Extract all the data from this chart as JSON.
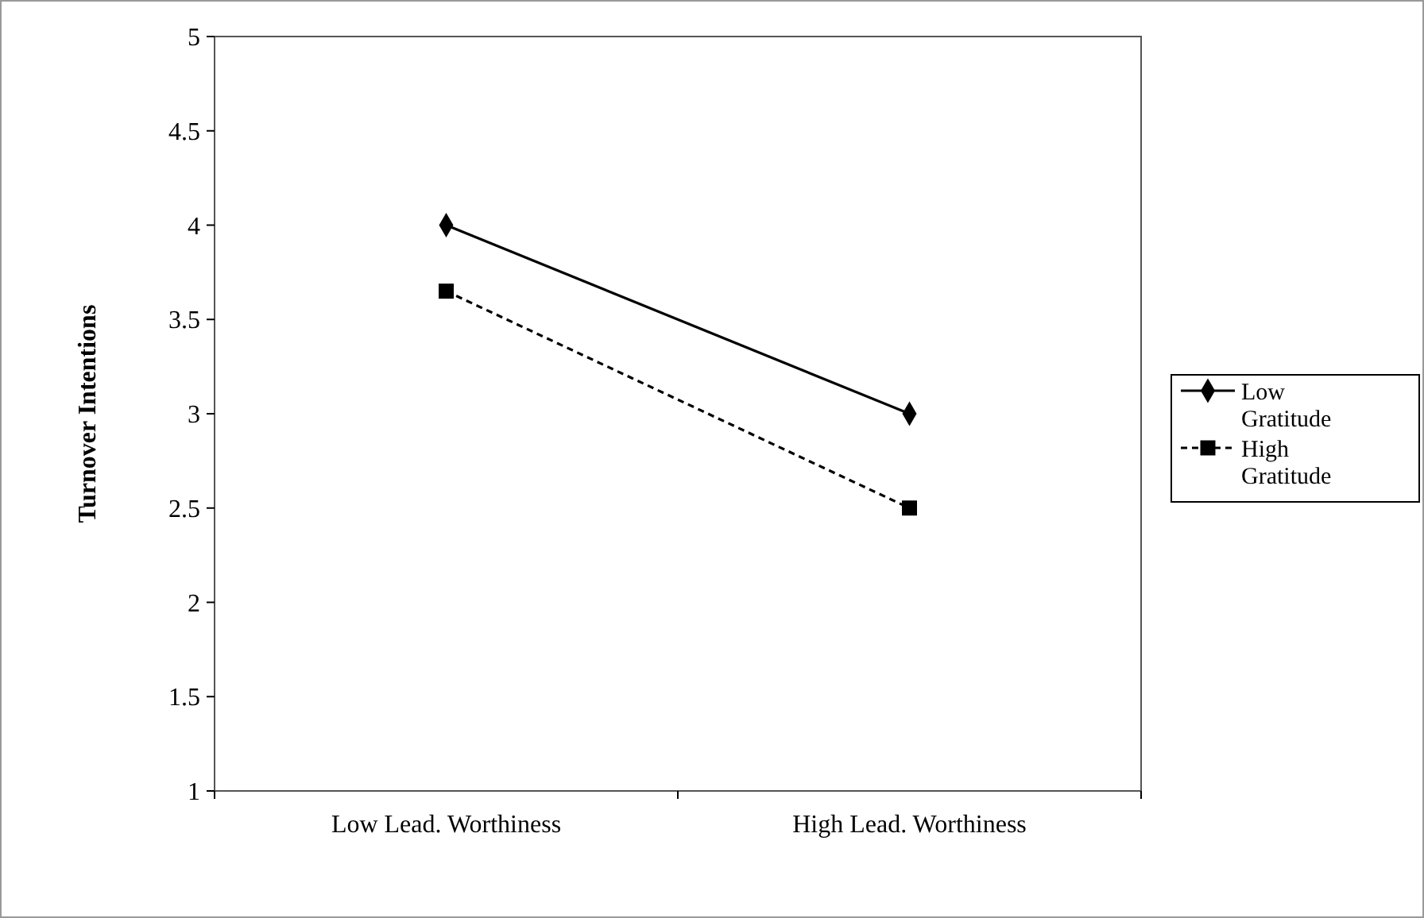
{
  "chart_data": {
    "type": "line",
    "ylabel": "Turnover Intentions",
    "categories": [
      "Low Lead. Worthiness",
      "High Lead. Worthiness"
    ],
    "series": [
      {
        "name": "Low Gratitude",
        "color": "#000000",
        "values": [
          4,
          3
        ],
        "marker": "diamond",
        "line_style": "solid"
      },
      {
        "name": "High Gratitude",
        "color": "#000000",
        "values": [
          3.65,
          2.5
        ],
        "marker": "square",
        "line_style": "dashed"
      }
    ],
    "ylim": [
      1,
      5
    ],
    "yticks": [
      1,
      1.5,
      2,
      2.5,
      3,
      3.5,
      4,
      4.5,
      5
    ],
    "grid": false,
    "legend": "right"
  }
}
